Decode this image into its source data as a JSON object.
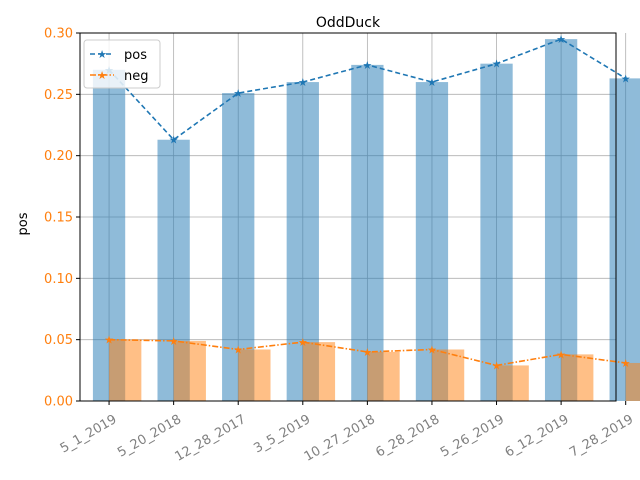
{
  "chart_data": {
    "type": "bar",
    "title": "OddDuck",
    "ylabel": "pos",
    "xlabel": "",
    "categories": [
      "5_1_2019",
      "5_20_2018",
      "12_28_2017",
      "3_5_2019",
      "10_27_2018",
      "6_28_2018",
      "5_26_2019",
      "6_12_2019",
      "7_28_2019"
    ],
    "series": [
      {
        "name": "pos",
        "values": [
          0.27,
          0.213,
          0.251,
          0.26,
          0.274,
          0.26,
          0.275,
          0.295,
          0.263
        ],
        "color": "#1f77b4"
      },
      {
        "name": "neg",
        "values": [
          0.05,
          0.049,
          0.042,
          0.048,
          0.04,
          0.042,
          0.029,
          0.038,
          0.031
        ],
        "color": "#ff7f0e"
      }
    ],
    "ylim": [
      0,
      0.3
    ],
    "yticks": [
      "0.00",
      "0.05",
      "0.10",
      "0.15",
      "0.20",
      "0.25",
      "0.30"
    ],
    "grid": true,
    "legend_position": "top-left",
    "ytick_color": "#ff7f0e",
    "xtick_color": "#808080"
  }
}
